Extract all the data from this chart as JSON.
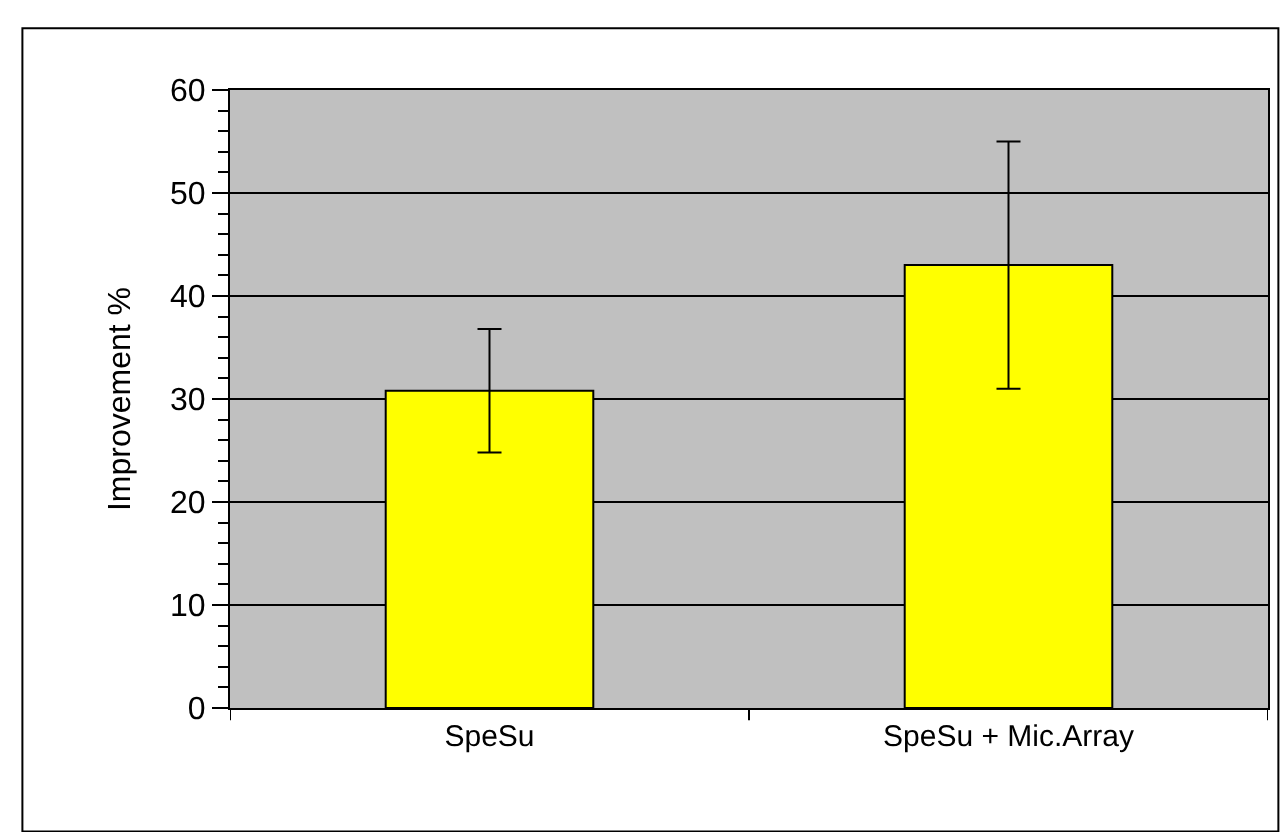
{
  "chart_data": {
    "type": "bar",
    "ylabel": "Improvement %",
    "categories": [
      "SpeSu",
      "SpeSu + Mic.Array"
    ],
    "values": [
      30.8,
      43
    ],
    "errors": [
      6,
      12
    ],
    "color": "#ffff00",
    "ylim": [
      0,
      60
    ],
    "yticks": [
      0,
      10,
      20,
      30,
      40,
      50,
      60
    ],
    "grid": "y",
    "legend": false
  }
}
